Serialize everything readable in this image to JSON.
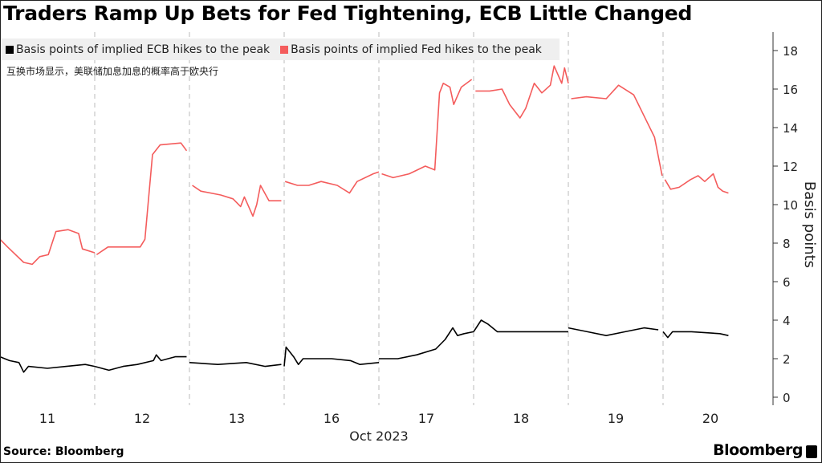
{
  "chart_data": {
    "type": "line",
    "title": "Traders Ramp Up Bets for Fed Tightening, ECB Little Changed",
    "subtitle": "互换市场显示，美联储加息加息的概率高于欧央行",
    "xlabel": "Oct 2023",
    "ylabel": "Basis points",
    "x_tick_labels": [
      "11",
      "12",
      "13",
      "16",
      "17",
      "18",
      "19",
      "20"
    ],
    "y_ticks": [
      0,
      2,
      4,
      6,
      8,
      10,
      12,
      14,
      16,
      18
    ],
    "ylim": [
      0,
      18.5
    ],
    "xlim_trading_days": [
      0,
      8.2
    ],
    "legend_position": "top-left",
    "grid": "vertical dashed day separators",
    "series": [
      {
        "name": "Basis points of implied ECB hikes to the peak",
        "color": "#000000",
        "segments": [
          [
            [
              0,
              2.1
            ],
            [
              0.1,
              1.9
            ],
            [
              0.2,
              1.8
            ],
            [
              0.25,
              1.3
            ],
            [
              0.3,
              1.6
            ],
            [
              0.5,
              1.5
            ],
            [
              0.7,
              1.6
            ],
            [
              0.9,
              1.7
            ],
            [
              1.0,
              1.6
            ]
          ],
          [
            [
              1.0,
              1.6
            ],
            [
              1.15,
              1.4
            ],
            [
              1.3,
              1.6
            ],
            [
              1.45,
              1.7
            ],
            [
              1.62,
              1.9
            ],
            [
              1.65,
              2.2
            ],
            [
              1.7,
              1.9
            ],
            [
              1.85,
              2.1
            ],
            [
              1.97,
              2.1
            ]
          ],
          [
            [
              2.0,
              1.8
            ],
            [
              2.3,
              1.7
            ],
            [
              2.6,
              1.8
            ],
            [
              2.8,
              1.6
            ],
            [
              2.97,
              1.7
            ]
          ],
          [
            [
              3.0,
              1.6
            ],
            [
              3.02,
              2.6
            ],
            [
              3.1,
              2.1
            ],
            [
              3.15,
              1.7
            ],
            [
              3.2,
              2.0
            ],
            [
              3.5,
              2.0
            ],
            [
              3.7,
              1.9
            ],
            [
              3.8,
              1.7
            ],
            [
              4.0,
              1.8
            ]
          ],
          [
            [
              4.0,
              2.0
            ],
            [
              4.2,
              2.0
            ],
            [
              4.4,
              2.2
            ],
            [
              4.6,
              2.5
            ],
            [
              4.7,
              3.0
            ],
            [
              4.78,
              3.6
            ],
            [
              4.83,
              3.2
            ],
            [
              4.9,
              3.3
            ],
            [
              5.0,
              3.4
            ]
          ],
          [
            [
              5.0,
              3.4
            ],
            [
              5.08,
              4.0
            ],
            [
              5.15,
              3.8
            ],
            [
              5.25,
              3.4
            ],
            [
              5.5,
              3.4
            ],
            [
              5.8,
              3.4
            ],
            [
              6.0,
              3.4
            ]
          ],
          [
            [
              6.0,
              3.6
            ],
            [
              6.2,
              3.4
            ],
            [
              6.4,
              3.2
            ],
            [
              6.6,
              3.4
            ],
            [
              6.8,
              3.6
            ],
            [
              6.95,
              3.5
            ]
          ],
          [
            [
              7.0,
              3.4
            ],
            [
              7.05,
              3.1
            ],
            [
              7.1,
              3.4
            ],
            [
              7.3,
              3.4
            ],
            [
              7.6,
              3.3
            ],
            [
              7.69,
              3.2
            ]
          ]
        ]
      },
      {
        "name": "Basis points of implied Fed hikes to the peak",
        "color": "#f45c5c",
        "segments": [
          [
            [
              0,
              8.2
            ],
            [
              0.08,
              7.8
            ],
            [
              0.25,
              7.0
            ],
            [
              0.34,
              6.9
            ],
            [
              0.42,
              7.3
            ],
            [
              0.51,
              7.4
            ],
            [
              0.59,
              8.6
            ],
            [
              0.72,
              8.7
            ],
            [
              0.83,
              8.5
            ],
            [
              0.87,
              7.7
            ],
            [
              1.0,
              7.5
            ]
          ],
          [
            [
              1.02,
              7.4
            ],
            [
              1.14,
              7.8
            ],
            [
              1.48,
              7.8
            ],
            [
              1.53,
              8.2
            ],
            [
              1.61,
              12.6
            ],
            [
              1.69,
              13.1
            ],
            [
              1.91,
              13.2
            ],
            [
              1.97,
              12.8
            ]
          ],
          [
            [
              2.03,
              11.0
            ],
            [
              2.12,
              10.7
            ],
            [
              2.33,
              10.5
            ],
            [
              2.46,
              10.3
            ],
            [
              2.54,
              9.9
            ],
            [
              2.58,
              10.4
            ],
            [
              2.67,
              9.4
            ],
            [
              2.71,
              10.0
            ],
            [
              2.75,
              11.0
            ],
            [
              2.84,
              10.2
            ],
            [
              2.97,
              10.2
            ]
          ],
          [
            [
              3.01,
              11.2
            ],
            [
              3.14,
              11.0
            ],
            [
              3.26,
              11.0
            ],
            [
              3.39,
              11.2
            ],
            [
              3.56,
              11.0
            ],
            [
              3.69,
              10.6
            ],
            [
              3.77,
              11.2
            ],
            [
              3.94,
              11.6
            ],
            [
              4.0,
              11.7
            ]
          ],
          [
            [
              4.03,
              11.6
            ],
            [
              4.15,
              11.4
            ],
            [
              4.32,
              11.6
            ],
            [
              4.49,
              12.0
            ],
            [
              4.59,
              11.8
            ],
            [
              4.64,
              15.8
            ],
            [
              4.68,
              16.3
            ],
            [
              4.75,
              16.1
            ],
            [
              4.79,
              15.2
            ],
            [
              4.87,
              16.1
            ],
            [
              4.98,
              16.5
            ]
          ],
          [
            [
              5.02,
              15.9
            ],
            [
              5.17,
              15.9
            ],
            [
              5.3,
              16.0
            ],
            [
              5.38,
              15.2
            ],
            [
              5.49,
              14.5
            ],
            [
              5.55,
              15.0
            ],
            [
              5.64,
              16.3
            ],
            [
              5.72,
              15.8
            ],
            [
              5.81,
              16.2
            ],
            [
              5.85,
              17.2
            ],
            [
              5.93,
              16.3
            ],
            [
              5.96,
              17.1
            ],
            [
              6.0,
              16.3
            ]
          ],
          [
            [
              6.03,
              15.5
            ],
            [
              6.19,
              15.6
            ],
            [
              6.4,
              15.5
            ],
            [
              6.53,
              16.2
            ],
            [
              6.69,
              15.7
            ],
            [
              6.78,
              14.8
            ],
            [
              6.91,
              13.5
            ],
            [
              6.97,
              12.0
            ],
            [
              6.99,
              11.5
            ]
          ],
          [
            [
              7.02,
              11.3
            ],
            [
              7.08,
              10.8
            ],
            [
              7.17,
              10.9
            ],
            [
              7.29,
              11.3
            ],
            [
              7.37,
              11.5
            ],
            [
              7.44,
              11.2
            ],
            [
              7.53,
              11.6
            ],
            [
              7.58,
              10.9
            ],
            [
              7.63,
              10.7
            ],
            [
              7.69,
              10.6
            ]
          ]
        ]
      }
    ]
  },
  "legend": {
    "ecb_label": "Basis points of implied ECB hikes to the peak",
    "fed_label": "Basis points of implied Fed hikes to the peak"
  },
  "footer": {
    "source": "Source: Bloomberg",
    "brand": "Bloomberg"
  }
}
